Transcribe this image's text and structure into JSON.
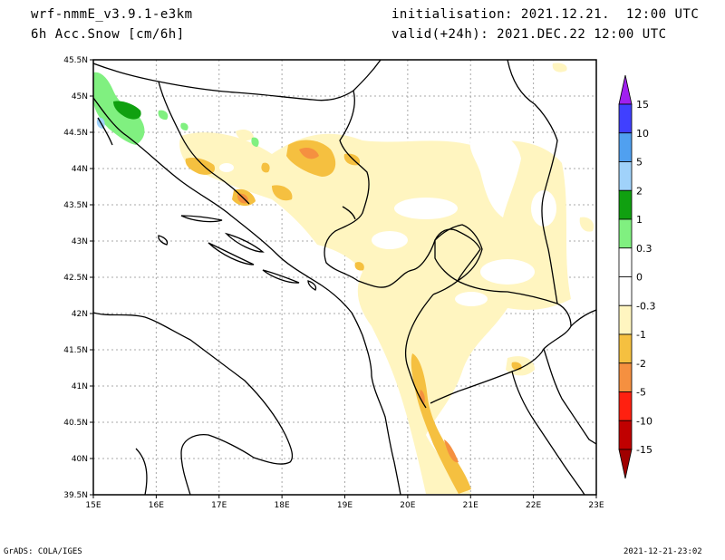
{
  "header": {
    "model": "wrf-nmmE_v3.9.1-e3km",
    "field": "6h Acc.Snow [cm/6h]",
    "init": "initialisation: 2021.12.21.  12:00 UTC",
    "valid": "valid(+24h): 2021.DEC.22 12:00 UTC"
  },
  "map": {
    "lat_labels": [
      "45.5N",
      "45N",
      "44.5N",
      "44N",
      "43.5N",
      "43N",
      "42.5N",
      "42N",
      "41.5N",
      "41N",
      "40.5N",
      "40N",
      "39.5N"
    ],
    "lon_labels": [
      "15E",
      "16E",
      "17E",
      "18E",
      "19E",
      "20E",
      "21E",
      "22E",
      "23E"
    ]
  },
  "colorbar": {
    "levels": [
      {
        "label": "15",
        "color": "#a020f0"
      },
      {
        "label": "10",
        "color": "#4040ff"
      },
      {
        "label": "5",
        "color": "#50a0f0"
      },
      {
        "label": "2",
        "color": "#a0d2fa"
      },
      {
        "label": "1",
        "color": "#10a010"
      },
      {
        "label": "0.3",
        "color": "#80f080"
      },
      {
        "label": "0",
        "color": "#ffffff"
      },
      {
        "label": "-0.3",
        "color": "#ffffff"
      },
      {
        "label": "-1",
        "color": "#fff5c0"
      },
      {
        "label": "-2",
        "color": "#f5c040"
      },
      {
        "label": "-5",
        "color": "#f59040"
      },
      {
        "label": "-10",
        "color": "#ff2010"
      },
      {
        "label": "-15",
        "color": "#c00000"
      }
    ],
    "top_color": "#a020f0",
    "bottom_color": "#a00000"
  },
  "footer": {
    "left": "GrADS: COLA/IGES",
    "right": "2021-12-21-23:02"
  }
}
